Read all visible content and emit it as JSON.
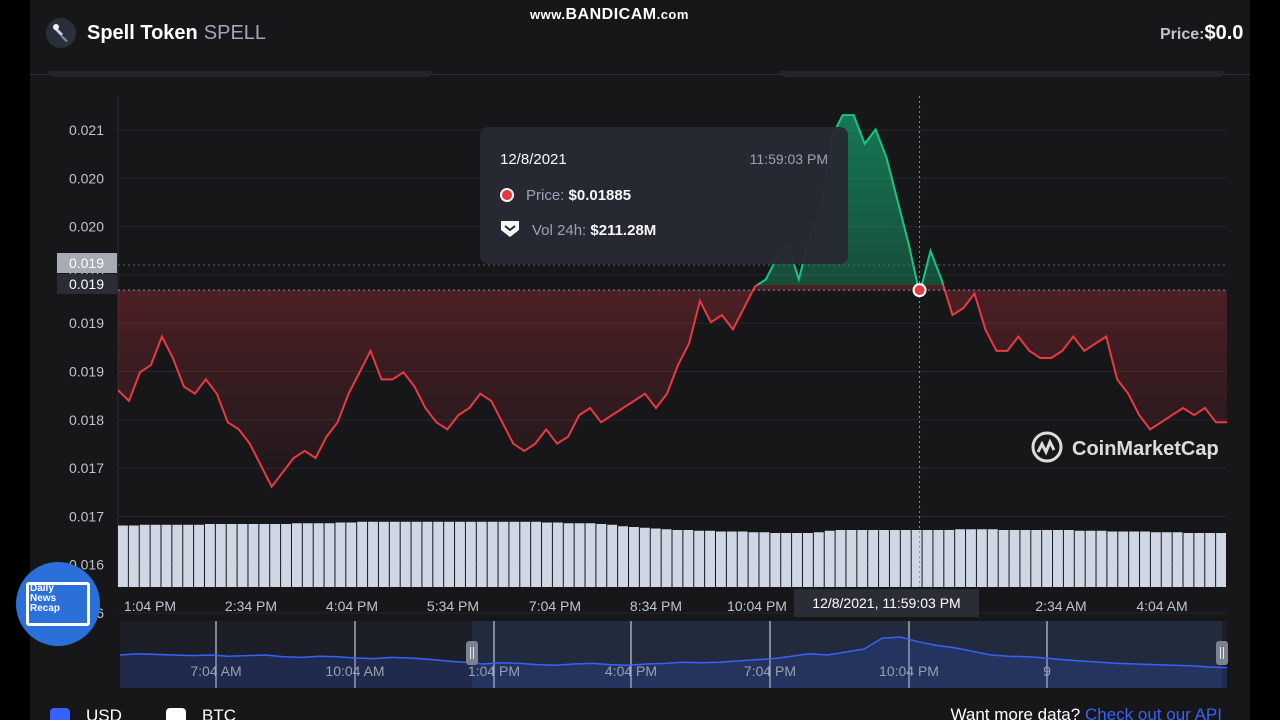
{
  "header": {
    "name": "Spell Token",
    "symbol": "SPELL",
    "price_label": "Price:",
    "price_value": "$0.0"
  },
  "watermark": {
    "prefix": "www.",
    "brand": "BANDICAM",
    "suffix": ".com"
  },
  "tooltip": {
    "date": "12/8/2021",
    "time": "11:59:03 PM",
    "price_label": "Price:",
    "price_value": "$0.01885",
    "vol_label": "Vol 24h:",
    "vol_value": "$211.28M"
  },
  "hover_time_label": "12/8/2021, 11:59:03 PM",
  "cmc_brand": "CoinMarketCap",
  "badge": {
    "line1": "Daily",
    "line2": "News",
    "line3": "Recap"
  },
  "footer": {
    "usd_label": "USD",
    "btc_label": "BTC",
    "more_data": "Want more data?",
    "api_link": "Check out our API"
  },
  "colors": {
    "up": "#16c784",
    "down": "#ea3943",
    "accent": "#3861fb",
    "volume": "#cfd6e4"
  },
  "chart_data": {
    "type": "line",
    "title": "",
    "ylabel": "",
    "xlabel": "",
    "y_ticks": [
      "0.021",
      "0.020",
      "0.020",
      "0.019",
      "0.019",
      "0.019",
      "0.018",
      "0.017",
      "0.017",
      "0.016",
      "0.016"
    ],
    "x_ticks": [
      "1:04 PM",
      "2:34 PM",
      "4:04 PM",
      "5:34 PM",
      "7:04 PM",
      "8:34 PM",
      "10:04 PM",
      "2:34 AM",
      "4:04 AM"
    ],
    "ylim": [
      0.0158,
      0.0214
    ],
    "y_marker_labels": [
      "0.019",
      "0.019"
    ],
    "highlight": {
      "time": "12/8/2021, 11:59:03 PM",
      "price": 0.01885
    },
    "price_series": {
      "name": "Price",
      "values": [
        0.01745,
        0.0173,
        0.0177,
        0.0178,
        0.0182,
        0.0179,
        0.0175,
        0.0174,
        0.0176,
        0.0174,
        0.017,
        0.0169,
        0.0167,
        0.0164,
        0.0161,
        0.0163,
        0.0165,
        0.0166,
        0.0165,
        0.0168,
        0.017,
        0.0174,
        0.0177,
        0.018,
        0.0176,
        0.0176,
        0.0177,
        0.0175,
        0.0172,
        0.017,
        0.0169,
        0.0171,
        0.0172,
        0.0174,
        0.0173,
        0.017,
        0.0167,
        0.0166,
        0.0167,
        0.0169,
        0.0167,
        0.0168,
        0.0171,
        0.0172,
        0.017,
        0.0171,
        0.0172,
        0.0173,
        0.0174,
        0.0172,
        0.0174,
        0.0178,
        0.0181,
        0.0187,
        0.0184,
        0.0185,
        0.0183,
        0.0186,
        0.0189,
        0.019,
        0.0193,
        0.0195,
        0.019,
        0.0196,
        0.02,
        0.021,
        0.0213,
        0.0213,
        0.0209,
        0.0211,
        0.0207,
        0.0201,
        0.0195,
        0.0188,
        0.0194,
        0.019,
        0.0185,
        0.0186,
        0.0188,
        0.0183,
        0.018,
        0.018,
        0.0182,
        0.018,
        0.0179,
        0.0179,
        0.018,
        0.0182,
        0.018,
        0.0181,
        0.0182,
        0.0176,
        0.0174,
        0.0171,
        0.0169,
        0.017,
        0.0171,
        0.0172,
        0.0171,
        0.0172,
        0.017,
        0.017
      ],
      "hover_index": 73
    },
    "volume_series": {
      "name": "Vol 24h",
      "values": [
        0.82,
        0.82,
        0.83,
        0.83,
        0.83,
        0.83,
        0.83,
        0.83,
        0.84,
        0.84,
        0.84,
        0.84,
        0.84,
        0.84,
        0.84,
        0.84,
        0.85,
        0.85,
        0.85,
        0.85,
        0.86,
        0.86,
        0.87,
        0.87,
        0.87,
        0.87,
        0.87,
        0.87,
        0.87,
        0.87,
        0.87,
        0.87,
        0.87,
        0.87,
        0.87,
        0.87,
        0.87,
        0.87,
        0.87,
        0.86,
        0.86,
        0.85,
        0.85,
        0.85,
        0.84,
        0.83,
        0.81,
        0.8,
        0.79,
        0.78,
        0.77,
        0.76,
        0.76,
        0.75,
        0.75,
        0.74,
        0.74,
        0.74,
        0.73,
        0.73,
        0.72,
        0.72,
        0.72,
        0.72,
        0.73,
        0.75,
        0.76,
        0.76,
        0.76,
        0.76,
        0.76,
        0.76,
        0.76,
        0.76,
        0.76,
        0.76,
        0.76,
        0.77,
        0.77,
        0.77,
        0.77,
        0.76,
        0.76,
        0.76,
        0.76,
        0.76,
        0.76,
        0.76,
        0.75,
        0.75,
        0.75,
        0.74,
        0.74,
        0.74,
        0.74,
        0.73,
        0.73,
        0.73,
        0.72,
        0.72,
        0.72,
        0.72
      ]
    },
    "navigator": {
      "x_ticks": [
        "7:04 AM",
        "10:04 AM",
        "1:04 PM",
        "4:04 PM",
        "7:04 PM",
        "10:04 PM",
        "9"
      ],
      "values": [
        0.5,
        0.52,
        0.51,
        0.5,
        0.49,
        0.5,
        0.48,
        0.49,
        0.5,
        0.47,
        0.46,
        0.48,
        0.47,
        0.45,
        0.44,
        0.46,
        0.45,
        0.43,
        0.4,
        0.38,
        0.35,
        0.37,
        0.36,
        0.34,
        0.33,
        0.35,
        0.36,
        0.34,
        0.33,
        0.35,
        0.36,
        0.38,
        0.37,
        0.38,
        0.4,
        0.42,
        0.44,
        0.48,
        0.52,
        0.5,
        0.55,
        0.6,
        0.78,
        0.8,
        0.72,
        0.66,
        0.62,
        0.56,
        0.5,
        0.48,
        0.47,
        0.45,
        0.42,
        0.4,
        0.38,
        0.36,
        0.35,
        0.34,
        0.33,
        0.32,
        0.3,
        0.29
      ]
    }
  }
}
